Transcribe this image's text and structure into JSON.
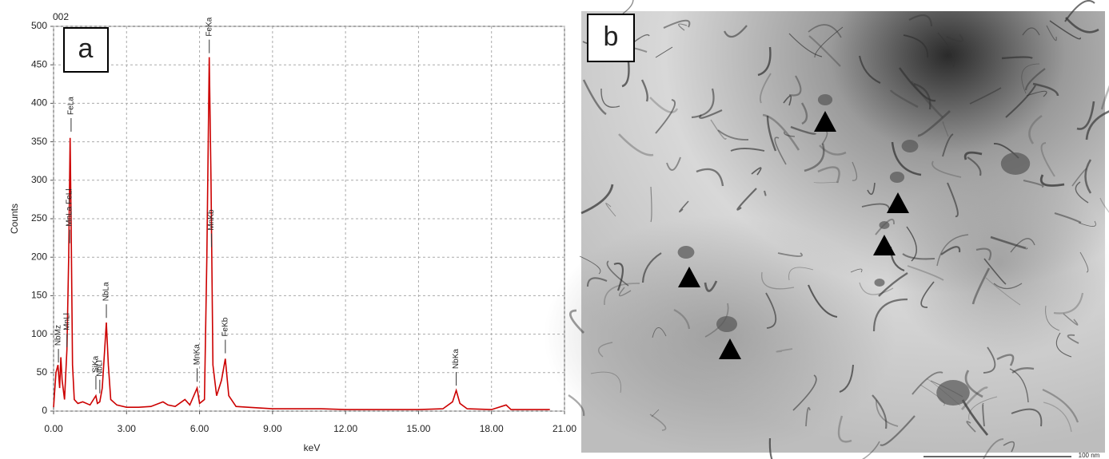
{
  "chart_data": {
    "type": "line",
    "title": "002",
    "panel_label": "a",
    "x_label": "keV",
    "y_label": "Counts",
    "color": "#cc0000",
    "grid": true,
    "xlim": [
      0,
      21
    ],
    "ylim": [
      0,
      500
    ],
    "xticks": [
      {
        "value": 0,
        "label": "0.00"
      },
      {
        "value": 3,
        "label": "3.00"
      },
      {
        "value": 6,
        "label": "6.00"
      },
      {
        "value": 9,
        "label": "9.00"
      },
      {
        "value": 12,
        "label": "12.00"
      },
      {
        "value": 15,
        "label": "15.00"
      },
      {
        "value": 18,
        "label": "18.00"
      },
      {
        "value": 21,
        "label": "21.00"
      }
    ],
    "yticks": [
      0,
      50,
      100,
      150,
      200,
      250,
      300,
      350,
      400,
      450,
      500
    ],
    "x": [
      0.0,
      0.1,
      0.18,
      0.25,
      0.3,
      0.35,
      0.45,
      0.55,
      0.62,
      0.68,
      0.72,
      0.78,
      0.85,
      1.0,
      1.2,
      1.5,
      1.74,
      1.8,
      1.9,
      2.0,
      2.1,
      2.17,
      2.25,
      2.35,
      2.6,
      3.0,
      3.5,
      4.0,
      4.5,
      4.7,
      5.0,
      5.4,
      5.6,
      5.9,
      6.0,
      6.2,
      6.3,
      6.4,
      6.47,
      6.55,
      6.7,
      6.9,
      7.06,
      7.2,
      7.5,
      8.0,
      9.0,
      10.0,
      11.0,
      12.0,
      13.0,
      14.0,
      15.0,
      16.0,
      16.4,
      16.55,
      16.7,
      17.0,
      18.0,
      18.6,
      18.8,
      19.5,
      20.4
    ],
    "values": [
      5,
      50,
      60,
      30,
      70,
      40,
      15,
      80,
      200,
      355,
      250,
      60,
      15,
      10,
      12,
      8,
      20,
      10,
      12,
      30,
      80,
      115,
      60,
      15,
      8,
      5,
      5,
      6,
      12,
      8,
      6,
      15,
      8,
      30,
      10,
      15,
      200,
      460,
      300,
      60,
      20,
      40,
      68,
      20,
      6,
      5,
      3,
      3,
      3,
      2,
      2,
      2,
      2,
      3,
      12,
      27,
      10,
      3,
      2,
      8,
      2,
      2,
      2
    ],
    "annotations": [
      {
        "text": "NbMz",
        "x": 0.2,
        "y": 60
      },
      {
        "text": "MnLl",
        "x": 0.55,
        "y": 80
      },
      {
        "text": "MnLa FeLl",
        "x": 0.66,
        "y": 215
      },
      {
        "text": "FeLa",
        "x": 0.72,
        "y": 360
      },
      {
        "text": "SiKa",
        "x": 1.74,
        "y": 25
      },
      {
        "text": "NbLl",
        "x": 1.9,
        "y": 20
      },
      {
        "text": "NbLa",
        "x": 2.17,
        "y": 118
      },
      {
        "text": "MnKa",
        "x": 5.9,
        "y": 35
      },
      {
        "text": "MnKb",
        "x": 6.49,
        "y": 210
      },
      {
        "text": "FeKa",
        "x": 6.4,
        "y": 462
      },
      {
        "text": "FeKb",
        "x": 7.06,
        "y": 72
      },
      {
        "text": "NbKa",
        "x": 16.55,
        "y": 30
      }
    ]
  },
  "panel_b": {
    "label": "b",
    "scale_bar": "100 nm"
  }
}
